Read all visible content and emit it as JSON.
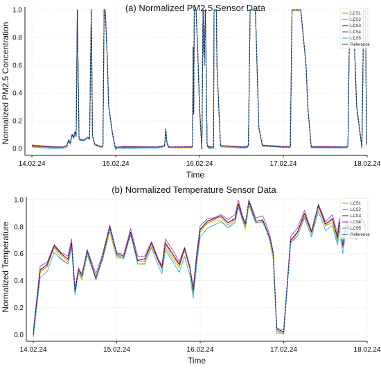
{
  "chart_data": [
    {
      "type": "line",
      "title": "(a) Normalized PM2.5 Sensor Data",
      "xlabel": "Time",
      "ylabel": "Normalized PM2.5 Concentration",
      "xlim": [
        "2024-02-13T22:00",
        "2024-02-18T00:00"
      ],
      "ylim": [
        -0.05,
        1.02
      ],
      "x_ticks": [
        "14.02.24",
        "15.02.24",
        "16.02.24",
        "17.02.24",
        "18.02.24"
      ],
      "y_ticks": [
        "0.0",
        "0.2",
        "0.4",
        "0.6",
        "0.8",
        "1.0"
      ],
      "legend_position": "top-right",
      "series_names": [
        "LCS1",
        "LCS2",
        "LCS3",
        "LCS4",
        "LCS5",
        "Reference"
      ],
      "series_colors": [
        "#d4b400",
        "#e08020",
        "#c0203a",
        "#b04fd0",
        "#40b8e8",
        "#1a2a44"
      ],
      "reference": {
        "x": [
          "2024-02-14T00:00",
          "2024-02-14T06:00",
          "2024-02-14T09:00",
          "2024-02-14T10:00",
          "2024-02-14T10:30",
          "2024-02-14T11:00",
          "2024-02-14T11:30",
          "2024-02-14T12:00",
          "2024-02-14T12:20",
          "2024-02-14T12:40",
          "2024-02-14T13:00",
          "2024-02-14T13:30",
          "2024-02-14T14:00",
          "2024-02-14T15:00",
          "2024-02-14T16:00",
          "2024-02-14T16:30",
          "2024-02-14T17:00",
          "2024-02-14T17:20",
          "2024-02-14T17:40",
          "2024-02-14T18:00",
          "2024-02-14T19:00",
          "2024-02-14T20:00",
          "2024-02-14T20:20",
          "2024-02-14T20:40",
          "2024-02-14T21:00",
          "2024-02-14T21:30",
          "2024-02-14T22:00",
          "2024-02-14T23:00",
          "2024-02-14T23:30",
          "2024-02-14T23:45",
          "2024-02-15T00:00",
          "2024-02-15T00:20",
          "2024-02-15T01:00",
          "2024-02-15T01:30",
          "2024-02-15T02:00",
          "2024-02-15T04:00",
          "2024-02-15T08:00",
          "2024-02-15T12:00",
          "2024-02-15T14:00",
          "2024-02-15T14:20",
          "2024-02-15T14:40",
          "2024-02-15T15:10",
          "2024-02-15T15:30",
          "2024-02-15T16:00",
          "2024-02-15T18:00",
          "2024-02-15T22:00",
          "2024-02-15T22:10",
          "2024-02-15T22:20",
          "2024-02-15T22:30",
          "2024-02-15T22:40",
          "2024-02-15T23:00",
          "2024-02-15T23:30",
          "2024-02-16T00:00",
          "2024-02-16T00:40",
          "2024-02-16T01:00",
          "2024-02-16T01:20",
          "2024-02-16T01:40",
          "2024-02-16T02:10",
          "2024-02-16T02:30",
          "2024-02-16T03:00",
          "2024-02-16T03:30",
          "2024-02-16T04:00",
          "2024-02-16T04:10",
          "2024-02-16T04:50",
          "2024-02-16T05:00",
          "2024-02-16T05:30",
          "2024-02-16T06:00",
          "2024-02-16T12:00",
          "2024-02-16T13:30",
          "2024-02-16T14:00",
          "2024-02-16T14:30",
          "2024-02-16T15:30",
          "2024-02-16T16:00",
          "2024-02-16T17:00",
          "2024-02-16T18:00",
          "2024-02-17T00:00",
          "2024-02-17T02:00",
          "2024-02-17T02:30",
          "2024-02-17T05:00",
          "2024-02-17T06:30",
          "2024-02-17T07:00",
          "2024-02-17T08:00",
          "2024-02-17T14:00",
          "2024-02-17T18:00",
          "2024-02-17T18:30",
          "2024-02-17T19:00",
          "2024-02-17T20:00",
          "2024-02-17T21:00",
          "2024-02-17T22:30",
          "2024-02-17T23:00",
          "2024-02-17T23:30",
          "2024-02-17T23:50"
        ],
        "y": [
          0.02,
          0.01,
          0.01,
          0.02,
          0.06,
          0.04,
          0.1,
          0.08,
          0.12,
          0.09,
          1.0,
          0.07,
          0.06,
          0.06,
          0.08,
          0.07,
          1.0,
          0.09,
          0.06,
          0.03,
          0.02,
          0.01,
          0.02,
          1.0,
          1.0,
          0.7,
          0.3,
          0.12,
          0.05,
          0.02,
          0.0,
          0.01,
          0.01,
          0.01,
          0.01,
          0.01,
          0.01,
          0.01,
          0.02,
          0.14,
          0.04,
          0.01,
          0.01,
          0.01,
          0.01,
          0.01,
          0.73,
          0.25,
          1.0,
          1.0,
          1.0,
          0.7,
          0.3,
          0.0,
          1.0,
          0.6,
          1.0,
          0.03,
          0.01,
          0.01,
          0.01,
          0.01,
          1.0,
          1.0,
          0.6,
          0.3,
          0.02,
          0.01,
          0.01,
          0.02,
          1.0,
          1.0,
          1.0,
          0.15,
          0.02,
          0.01,
          0.01,
          1.0,
          1.0,
          0.6,
          0.3,
          0.01,
          0.01,
          0.01,
          0.02,
          1.0,
          1.0,
          0.3,
          0.01,
          1.0,
          1.0,
          0.03
        ]
      }
    },
    {
      "type": "line",
      "title": "(b) Normalized Temperature Sensor Data",
      "xlabel": "Time",
      "ylabel": "Normalized Temperature",
      "xlim": [
        "2024-02-13T22:00",
        "2024-02-18T00:00"
      ],
      "ylim": [
        -0.05,
        1.02
      ],
      "x_ticks": [
        "14.02.24",
        "15.02.24",
        "16.02.24",
        "17.02.24",
        "18.02.24"
      ],
      "y_ticks": [
        "0.0",
        "0.2",
        "0.4",
        "0.6",
        "0.8",
        "1.0"
      ],
      "legend_position": "top-right",
      "series_names": [
        "LCS1",
        "LCS2",
        "LCS3",
        "LCS4",
        "LCS5",
        "Reference"
      ],
      "series_colors": [
        "#d4b400",
        "#e08020",
        "#c0203a",
        "#b04fd0",
        "#40b8e8",
        "#1a2a44"
      ],
      "reference": {
        "x": [
          "2024-02-14T00:00",
          "2024-02-14T02:00",
          "2024-02-14T04:00",
          "2024-02-14T06:00",
          "2024-02-14T08:00",
          "2024-02-14T10:00",
          "2024-02-14T11:00",
          "2024-02-14T12:00",
          "2024-02-14T13:00",
          "2024-02-14T14:00",
          "2024-02-14T15:30",
          "2024-02-14T17:00",
          "2024-02-14T18:00",
          "2024-02-14T20:00",
          "2024-02-14T22:00",
          "2024-02-15T00:00",
          "2024-02-15T02:00",
          "2024-02-15T04:00",
          "2024-02-15T06:00",
          "2024-02-15T08:00",
          "2024-02-15T10:00",
          "2024-02-15T12:00",
          "2024-02-15T13:00",
          "2024-02-15T14:00",
          "2024-02-15T16:00",
          "2024-02-15T18:00",
          "2024-02-15T19:30",
          "2024-02-15T21:00",
          "2024-02-15T22:00",
          "2024-02-15T23:00",
          "2024-02-16T00:00",
          "2024-02-16T02:00",
          "2024-02-16T04:00",
          "2024-02-16T06:00",
          "2024-02-16T08:00",
          "2024-02-16T10:00",
          "2024-02-16T11:00",
          "2024-02-16T12:00",
          "2024-02-16T13:00",
          "2024-02-16T14:00",
          "2024-02-16T16:00",
          "2024-02-16T18:00",
          "2024-02-16T20:00",
          "2024-02-16T21:00",
          "2024-02-16T22:00",
          "2024-02-17T00:00",
          "2024-02-17T02:00",
          "2024-02-17T04:00",
          "2024-02-17T06:00",
          "2024-02-17T08:00",
          "2024-02-17T10:00",
          "2024-02-17T12:00",
          "2024-02-17T14:00",
          "2024-02-17T15:30",
          "2024-02-17T16:00",
          "2024-02-17T17:00",
          "2024-02-17T18:00",
          "2024-02-17T19:00",
          "2024-02-17T20:00",
          "2024-02-17T21:00",
          "2024-02-17T22:00",
          "2024-02-17T23:00",
          "2024-02-17T23:30"
        ],
        "y": [
          0.0,
          0.48,
          0.52,
          0.66,
          0.6,
          0.56,
          0.68,
          0.32,
          0.48,
          0.44,
          0.62,
          0.5,
          0.42,
          0.58,
          0.8,
          0.6,
          0.58,
          0.76,
          0.55,
          0.56,
          0.68,
          0.55,
          0.5,
          0.68,
          0.6,
          0.52,
          0.64,
          0.5,
          0.33,
          0.58,
          0.78,
          0.84,
          0.86,
          0.88,
          0.83,
          0.86,
          0.97,
          0.88,
          0.82,
          0.99,
          0.84,
          0.85,
          0.72,
          0.6,
          0.04,
          0.02,
          0.7,
          0.76,
          0.9,
          0.76,
          0.96,
          0.82,
          0.86,
          0.72,
          0.84,
          0.66,
          0.84,
          0.78,
          0.78,
          0.76,
          0.86,
          0.84,
          0.8
        ]
      }
    }
  ]
}
